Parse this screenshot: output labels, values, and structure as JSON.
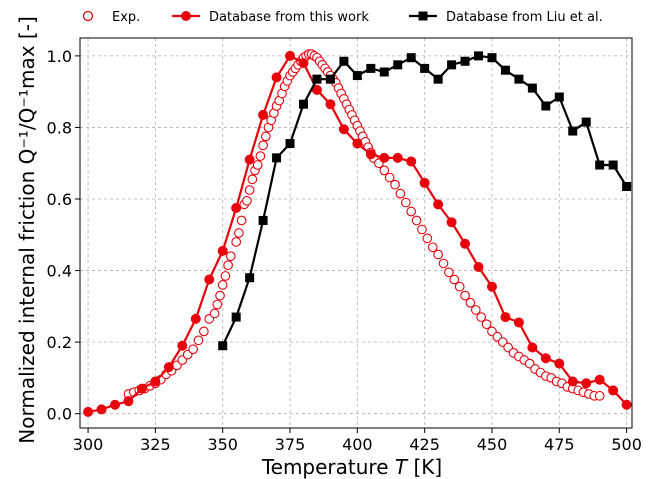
{
  "chart_data": {
    "type": "line",
    "xlabel_text": "Temperature ",
    "xlabel_var": "T",
    "xlabel_unit": " [K]",
    "ylabel": "Normalized internal friction Q⁻¹/Q⁻¹max [-]",
    "xlim": [
      297,
      502
    ],
    "ylim": [
      -0.04,
      1.05
    ],
    "x_ticks": [
      300,
      325,
      350,
      375,
      400,
      425,
      450,
      475,
      500
    ],
    "y_ticks": [
      0.0,
      0.2,
      0.4,
      0.6,
      0.8,
      1.0
    ],
    "x_tick_labels": [
      "300",
      "325",
      "350",
      "375",
      "400",
      "425",
      "450",
      "475",
      "500"
    ],
    "y_tick_labels": [
      "0.0",
      "0.2",
      "0.4",
      "0.6",
      "0.8",
      "1.0"
    ],
    "grid": true,
    "legend_position": "top",
    "series": [
      {
        "name": "Exp.",
        "color": "#e8000b",
        "marker": "circle-open",
        "line": false,
        "x": [
          315,
          317,
          319,
          321,
          323,
          325,
          327,
          329,
          331,
          333,
          335,
          337,
          339,
          341,
          343,
          345,
          347,
          348,
          349,
          350,
          351,
          352,
          353,
          355,
          356,
          357,
          358,
          359,
          360,
          361,
          362,
          363,
          364,
          365,
          366,
          367,
          368,
          369,
          370,
          371,
          372,
          373,
          374,
          375,
          376,
          377,
          378,
          379,
          380,
          381,
          382,
          383,
          384,
          385,
          386,
          387,
          388,
          389,
          390,
          391,
          392,
          393,
          394,
          395,
          396,
          397,
          398,
          399,
          400,
          401,
          402,
          403,
          404,
          405,
          406,
          408,
          410,
          412,
          414,
          416,
          418,
          420,
          422,
          424,
          426,
          428,
          430,
          432,
          434,
          436,
          438,
          440,
          442,
          444,
          446,
          448,
          450,
          452,
          454,
          456,
          458,
          460,
          462,
          464,
          466,
          468,
          470,
          472,
          474,
          476,
          478,
          480,
          482,
          484,
          486,
          488,
          490
        ],
        "y": [
          0.055,
          0.06,
          0.065,
          0.07,
          0.078,
          0.085,
          0.095,
          0.11,
          0.12,
          0.135,
          0.15,
          0.165,
          0.18,
          0.205,
          0.23,
          0.265,
          0.28,
          0.305,
          0.33,
          0.36,
          0.385,
          0.415,
          0.44,
          0.48,
          0.505,
          0.54,
          0.585,
          0.595,
          0.625,
          0.655,
          0.68,
          0.695,
          0.72,
          0.75,
          0.775,
          0.8,
          0.82,
          0.84,
          0.86,
          0.875,
          0.895,
          0.915,
          0.93,
          0.945,
          0.955,
          0.965,
          0.975,
          0.985,
          0.995,
          1.0,
          1.005,
          1.005,
          1.0,
          0.995,
          0.985,
          0.975,
          0.965,
          0.955,
          0.945,
          0.935,
          0.925,
          0.91,
          0.895,
          0.88,
          0.865,
          0.85,
          0.835,
          0.82,
          0.805,
          0.79,
          0.775,
          0.76,
          0.745,
          0.73,
          0.715,
          0.7,
          0.68,
          0.66,
          0.64,
          0.615,
          0.59,
          0.565,
          0.54,
          0.515,
          0.49,
          0.465,
          0.445,
          0.42,
          0.395,
          0.375,
          0.355,
          0.33,
          0.31,
          0.29,
          0.27,
          0.25,
          0.23,
          0.215,
          0.2,
          0.185,
          0.17,
          0.16,
          0.15,
          0.14,
          0.125,
          0.115,
          0.105,
          0.1,
          0.09,
          0.085,
          0.075,
          0.07,
          0.065,
          0.06,
          0.055,
          0.05,
          0.05
        ]
      },
      {
        "name": "Database from this work",
        "color": "#e8000b",
        "marker": "circle-filled",
        "line": true,
        "x": [
          300,
          305,
          310,
          315,
          320,
          325,
          330,
          335,
          340,
          345,
          350,
          355,
          360,
          365,
          370,
          375,
          380,
          385,
          390,
          395,
          400,
          405,
          410,
          415,
          420,
          425,
          430,
          435,
          440,
          445,
          450,
          455,
          460,
          465,
          470,
          475,
          480,
          485,
          490,
          495,
          500
        ],
        "y": [
          0.005,
          0.012,
          0.025,
          0.035,
          0.07,
          0.09,
          0.13,
          0.19,
          0.265,
          0.375,
          0.455,
          0.575,
          0.71,
          0.835,
          0.94,
          1.0,
          0.98,
          0.905,
          0.865,
          0.795,
          0.755,
          0.725,
          0.715,
          0.715,
          0.705,
          0.645,
          0.585,
          0.535,
          0.475,
          0.41,
          0.355,
          0.27,
          0.255,
          0.185,
          0.155,
          0.14,
          0.09,
          0.085,
          0.095,
          0.065,
          0.025
        ]
      },
      {
        "name": "Database from Liu et al.",
        "color": "#000000",
        "marker": "square-filled",
        "line": true,
        "x": [
          350,
          355,
          360,
          365,
          370,
          375,
          380,
          385,
          390,
          395,
          400,
          405,
          410,
          415,
          420,
          425,
          430,
          435,
          440,
          445,
          450,
          455,
          460,
          465,
          470,
          475,
          480,
          485,
          490,
          495,
          500
        ],
        "y": [
          0.19,
          0.27,
          0.38,
          0.54,
          0.715,
          0.755,
          0.865,
          0.935,
          0.935,
          0.985,
          0.945,
          0.965,
          0.955,
          0.975,
          0.995,
          0.965,
          0.935,
          0.975,
          0.985,
          1.0,
          0.995,
          0.96,
          0.935,
          0.91,
          0.86,
          0.885,
          0.79,
          0.815,
          0.695,
          0.695,
          0.635
        ]
      }
    ]
  }
}
